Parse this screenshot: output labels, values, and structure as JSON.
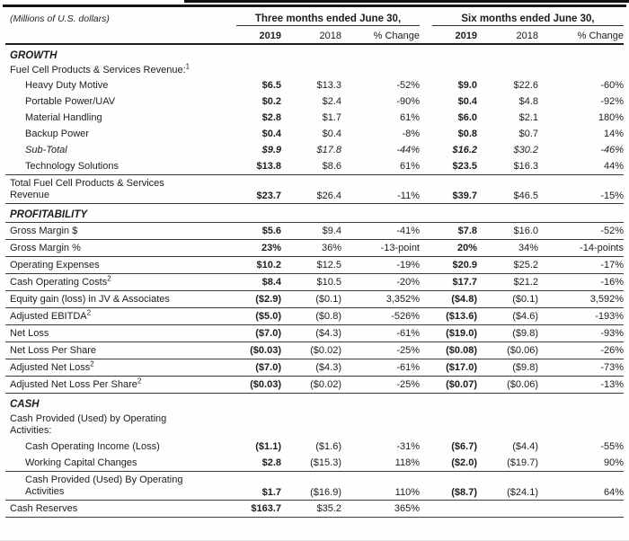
{
  "table": {
    "units_note": "(Millions of U.S. dollars)",
    "col_groups": [
      {
        "label": "Three months ended June 30,"
      },
      {
        "label": "Six months ended June 30,"
      }
    ],
    "col_headers": [
      "2019",
      "2018",
      "% Change",
      "2019",
      "2018",
      "% Change"
    ],
    "rows": [
      {
        "type": "section",
        "label": "GROWTH"
      },
      {
        "type": "label",
        "label": "Fuel Cell Products & Services Revenue:",
        "sup": "1"
      },
      {
        "type": "data",
        "indent": true,
        "label": "Heavy Duty Motive",
        "values": [
          "$6.5",
          "$13.3",
          "-52%",
          "$9.0",
          "$22.6",
          "-60%"
        ]
      },
      {
        "type": "data",
        "indent": true,
        "label": "Portable Power/UAV",
        "values": [
          "$0.2",
          "$2.4",
          "-90%",
          "$0.4",
          "$4.8",
          "-92%"
        ]
      },
      {
        "type": "data",
        "indent": true,
        "label": "Material Handling",
        "values": [
          "$2.8",
          "$1.7",
          "61%",
          "$6.0",
          "$2.1",
          "180%"
        ]
      },
      {
        "type": "data",
        "indent": true,
        "label": "Backup Power",
        "values": [
          "$0.4",
          "$0.4",
          "-8%",
          "$0.8",
          "$0.7",
          "14%"
        ]
      },
      {
        "type": "data",
        "indent": true,
        "italic": true,
        "label": "Sub-Total",
        "values": [
          "$9.9",
          "$17.8",
          "-44%",
          "$16.2",
          "$30.2",
          "-46%"
        ]
      },
      {
        "type": "data",
        "indent": true,
        "underline": true,
        "label": "Technology Solutions",
        "values": [
          "$13.8",
          "$8.6",
          "61%",
          "$23.5",
          "$16.3",
          "44%"
        ]
      },
      {
        "type": "data2",
        "underline": true,
        "label": "Total Fuel Cell Products & Services",
        "label2": "Revenue",
        "values": [
          "$23.7",
          "$26.4",
          "-11%",
          "$39.7",
          "$46.5",
          "-15%"
        ]
      },
      {
        "type": "section",
        "underline": true,
        "label": "PROFITABILITY"
      },
      {
        "type": "data",
        "underline": true,
        "label": "Gross Margin $",
        "values": [
          "$5.6",
          "$9.4",
          "-41%",
          "$7.8",
          "$16.0",
          "-52%"
        ]
      },
      {
        "type": "data",
        "underline": true,
        "label": "Gross Margin %",
        "values": [
          "23%",
          "36%",
          "-13-point",
          "20%",
          "34%",
          "-14-points"
        ]
      },
      {
        "type": "data",
        "underline": true,
        "label": "Operating Expenses",
        "values": [
          "$10.2",
          "$12.5",
          "-19%",
          "$20.9",
          "$25.2",
          "-17%"
        ]
      },
      {
        "type": "data",
        "underline": true,
        "label": "Cash Operating Costs",
        "sup": "2",
        "values": [
          "$8.4",
          "$10.5",
          "-20%",
          "$17.7",
          "$21.2",
          "-16%"
        ]
      },
      {
        "type": "data",
        "underline": true,
        "label": "Equity gain (loss) in JV & Associates",
        "values": [
          "($2.9)",
          "($0.1)",
          "3,352%",
          "($4.8)",
          "($0.1)",
          "3,592%"
        ]
      },
      {
        "type": "data",
        "underline": true,
        "label": "Adjusted EBITDA",
        "sup": "2",
        "values": [
          "($5.0)",
          "($0.8)",
          "-526%",
          "($13.6)",
          "($4.6)",
          "-193%"
        ]
      },
      {
        "type": "data",
        "underline": true,
        "label": "Net Loss",
        "values": [
          "($7.0)",
          "($4.3)",
          "-61%",
          "($19.0)",
          "($9.8)",
          "-93%"
        ]
      },
      {
        "type": "data",
        "underline": true,
        "label": "Net Loss Per Share",
        "values": [
          "($0.03)",
          "($0.02)",
          "-25%",
          "($0.08)",
          "($0.06)",
          "-26%"
        ]
      },
      {
        "type": "data",
        "underline": true,
        "label": "Adjusted Net Loss",
        "sup": "2",
        "values": [
          "($7.0)",
          "($4.3)",
          "-61%",
          "($17.0)",
          "($9.8)",
          "-73%"
        ]
      },
      {
        "type": "data",
        "underline": true,
        "label": "Adjusted Net Loss Per Share",
        "sup": "2",
        "values": [
          "($0.03)",
          "($0.02)",
          "-25%",
          "($0.07)",
          "($0.06)",
          "-13%"
        ]
      },
      {
        "type": "section",
        "label": "CASH"
      },
      {
        "type": "label2",
        "label": "Cash Provided (Used) by Operating",
        "label2": "Activities:"
      },
      {
        "type": "data",
        "indent": true,
        "label": "Cash Operating Income (Loss)",
        "values": [
          "($1.1)",
          "($1.6)",
          "-31%",
          "($6.7)",
          "($4.4)",
          "-55%"
        ]
      },
      {
        "type": "data",
        "indent": true,
        "underline": true,
        "label": "Working Capital Changes",
        "values": [
          "$2.8",
          "($15.3)",
          "118%",
          "($2.0)",
          "($19.7)",
          "90%"
        ]
      },
      {
        "type": "data2",
        "indent": true,
        "underline": true,
        "label": "Cash Provided (Used) By Operating",
        "label2": "Activities",
        "values": [
          "$1.7",
          "($16.9)",
          "110%",
          "($8.7)",
          "($24.1)",
          "64%"
        ]
      },
      {
        "type": "data",
        "underline": true,
        "label": "Cash Reserves",
        "values": [
          "$163.7",
          "$35.2",
          "365%",
          "",
          "",
          ""
        ]
      }
    ]
  }
}
